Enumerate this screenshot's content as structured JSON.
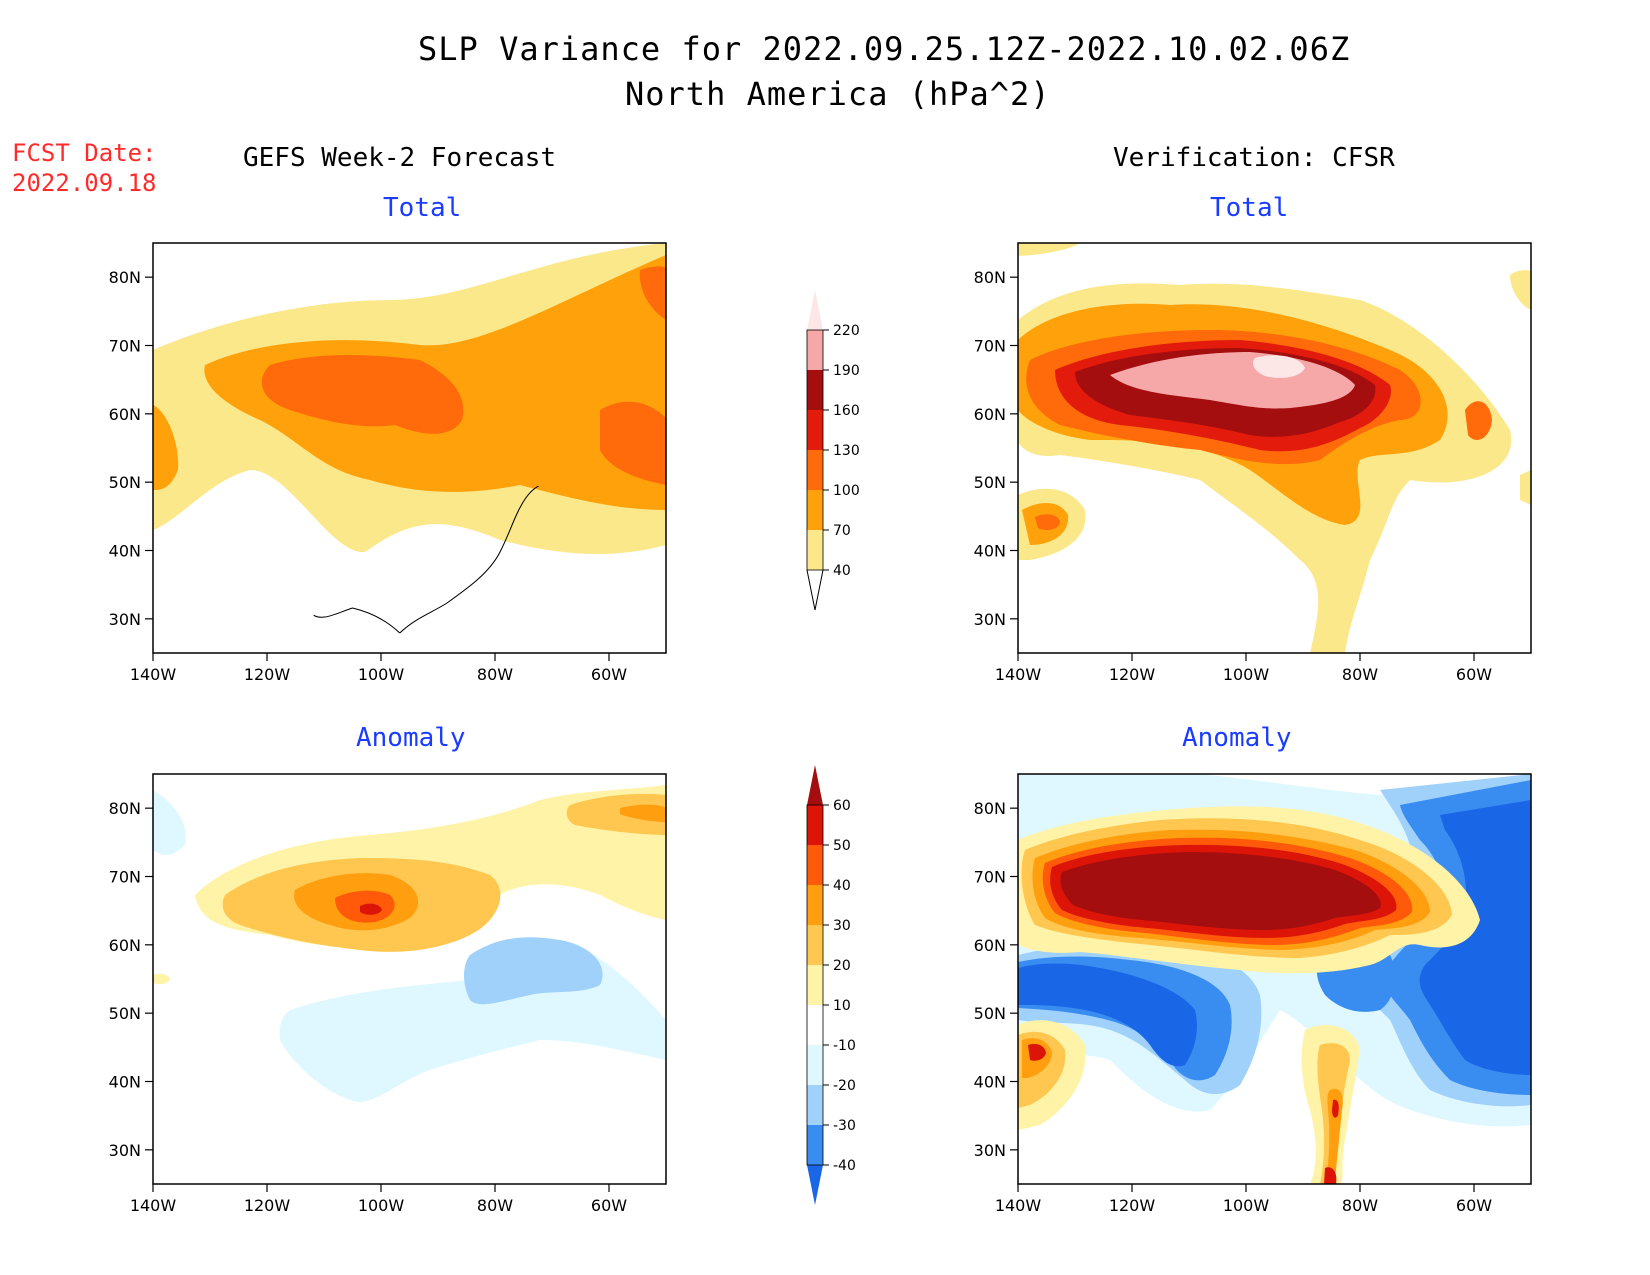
{
  "title": {
    "line1": "SLP Variance for 2022.09.25.12Z-2022.10.02.06Z",
    "line2": "North America (hPa^2)"
  },
  "forecast_date": {
    "label": "FCST Date:",
    "value": "2022.09.18"
  },
  "columns": {
    "left": "GEFS Week-2 Forecast",
    "right": "Verification: CFSR"
  },
  "panel_titles": {
    "total": "Total",
    "anomaly": "Anomaly"
  },
  "axes": {
    "lat_ticks": [
      "80N",
      "70N",
      "60N",
      "50N",
      "40N",
      "30N"
    ],
    "lon_ticks": [
      "140W",
      "120W",
      "100W",
      "80W",
      "60W"
    ]
  },
  "colorbars": {
    "total": {
      "levels": [
        "40",
        "70",
        "100",
        "130",
        "160",
        "190",
        "220"
      ],
      "colors": [
        "#fbe88a",
        "#ffa10b",
        "#ff6a0a",
        "#e31b0c",
        "#a50e0e",
        "#f6a8a8",
        "#fde6e6"
      ]
    },
    "anomaly": {
      "levels": [
        "-40",
        "-30",
        "-20",
        "-10",
        "10",
        "20",
        "30",
        "40",
        "50",
        "60"
      ],
      "colors": [
        "#1966e6",
        "#3a8df0",
        "#9fd1fb",
        "#dff8ff",
        "#ffffff",
        "#fff3a8",
        "#ffc750",
        "#ff9f10",
        "#ff5a0a",
        "#dd1508",
        "#a50e0e"
      ]
    }
  }
}
